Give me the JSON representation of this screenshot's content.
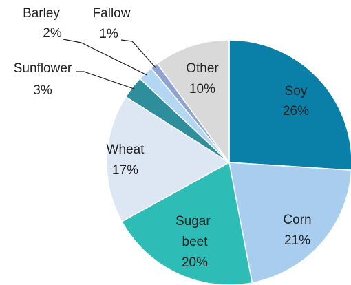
{
  "chart_data": {
    "type": "pie",
    "categories": [
      "Soy",
      "Corn",
      "Sugar beet",
      "Wheat",
      "Sunflower",
      "Barley",
      "Fallow",
      "Other"
    ],
    "values": [
      26,
      21,
      20,
      17,
      3,
      2,
      1,
      10
    ],
    "value_labels": [
      "26%",
      "21%",
      "20%",
      "17%",
      "3%",
      "2%",
      "1%",
      "10%"
    ],
    "colors": [
      "#0a80a8",
      "#a9cdee",
      "#2dbdb6",
      "#dde7f3",
      "#2e8e9b",
      "#b3d6f3",
      "#8ea3cf",
      "#d9d9d9"
    ]
  }
}
